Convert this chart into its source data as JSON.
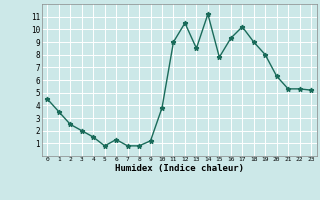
{
  "x": [
    0,
    1,
    2,
    3,
    4,
    5,
    6,
    7,
    8,
    9,
    10,
    11,
    12,
    13,
    14,
    15,
    16,
    17,
    18,
    19,
    20,
    21,
    22,
    23
  ],
  "y": [
    4.5,
    3.5,
    2.5,
    2.0,
    1.5,
    0.8,
    1.3,
    0.8,
    0.8,
    1.2,
    3.8,
    9.0,
    10.5,
    8.5,
    11.2,
    7.8,
    9.3,
    10.2,
    9.0,
    8.0,
    6.3,
    5.3,
    5.3,
    5.2
  ],
  "xlabel": "Humidex (Indice chaleur)",
  "xlim": [
    -0.5,
    23.5
  ],
  "ylim": [
    0,
    12
  ],
  "xticks": [
    0,
    1,
    2,
    3,
    4,
    5,
    6,
    7,
    8,
    9,
    10,
    11,
    12,
    13,
    14,
    15,
    16,
    17,
    18,
    19,
    20,
    21,
    22,
    23
  ],
  "yticks": [
    1,
    2,
    3,
    4,
    5,
    6,
    7,
    8,
    9,
    10,
    11
  ],
  "line_color": "#1a6b5a",
  "bg_color": "#cce8e8",
  "grid_color": "#ffffff",
  "marker": "*",
  "marker_size": 3.5,
  "line_width": 1.0
}
